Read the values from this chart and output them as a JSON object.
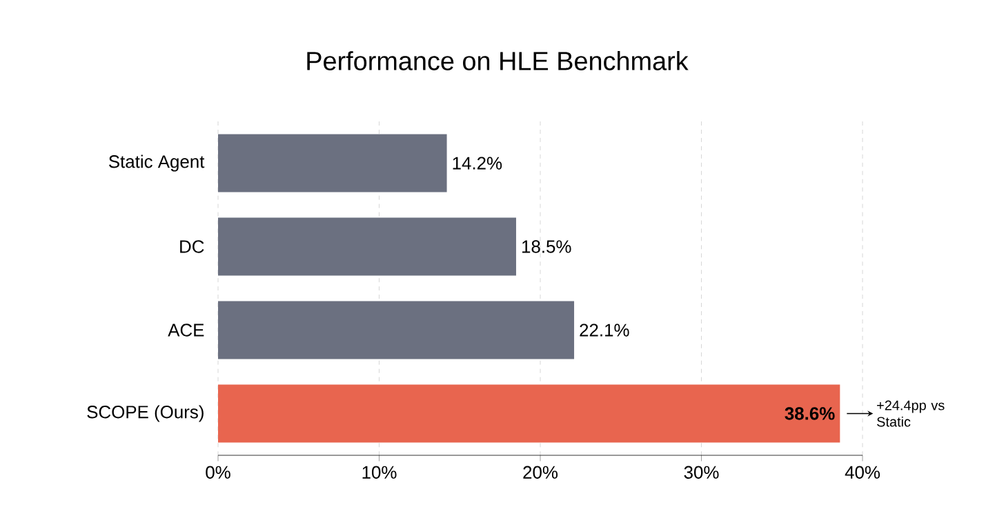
{
  "chart_data": {
    "type": "bar",
    "orientation": "horizontal",
    "title": "Performance on HLE Benchmark",
    "categories": [
      "Static Agent",
      "DC",
      "ACE",
      "SCOPE (Ours)"
    ],
    "values": [
      14.2,
      18.5,
      22.1,
      38.6
    ],
    "colors": [
      "#6b7080",
      "#6b7080",
      "#6b7080",
      "#e8654f"
    ],
    "value_labels": [
      "14.2%",
      "18.5%",
      "22.1%",
      "38.6%"
    ],
    "xlim": [
      0,
      40
    ],
    "xticks": [
      {
        "value": 0,
        "label": "0%"
      },
      {
        "value": 10,
        "label": "10%"
      },
      {
        "value": 20,
        "label": "20%"
      },
      {
        "value": 30,
        "label": "30%"
      },
      {
        "value": 40,
        "label": "40%"
      }
    ],
    "grid": "x",
    "annotations": [
      {
        "text": "+24.4pp vs Static",
        "x": 38.6,
        "y": "SCOPE (Ours)"
      }
    ]
  }
}
